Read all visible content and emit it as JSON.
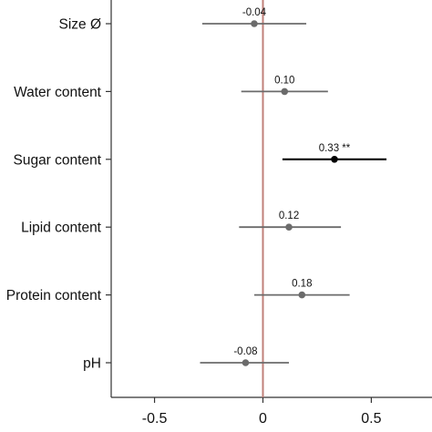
{
  "chart_data": {
    "type": "forest",
    "categories": [
      "Size Ø",
      "Water content",
      "Sugar content",
      "Lipid content",
      "Protein content",
      "pH"
    ],
    "series": [
      {
        "estimates": [
          -0.04,
          0.1,
          0.33,
          0.12,
          0.18,
          -0.08
        ],
        "ci_low": [
          -0.28,
          -0.1,
          0.09,
          -0.11,
          -0.04,
          -0.29
        ],
        "ci_high": [
          0.2,
          0.3,
          0.57,
          0.36,
          0.4,
          0.12
        ],
        "labels": [
          "-0.04",
          "0.10",
          "0.33 **",
          "0.12",
          "0.18",
          "-0.08"
        ],
        "significant": [
          false,
          false,
          true,
          false,
          false,
          false
        ]
      }
    ],
    "xticks": [
      -0.5,
      0,
      0.5
    ],
    "xtick_labels": [
      "-0.5",
      "0",
      "0.5"
    ],
    "xlim": [
      -0.7,
      0.78
    ],
    "reference_line": 0,
    "colors": {
      "significant": "#000000",
      "non_significant": "#6b6b6b",
      "reference_line": "#c0807a",
      "axis": "#333333"
    },
    "grid": false
  }
}
